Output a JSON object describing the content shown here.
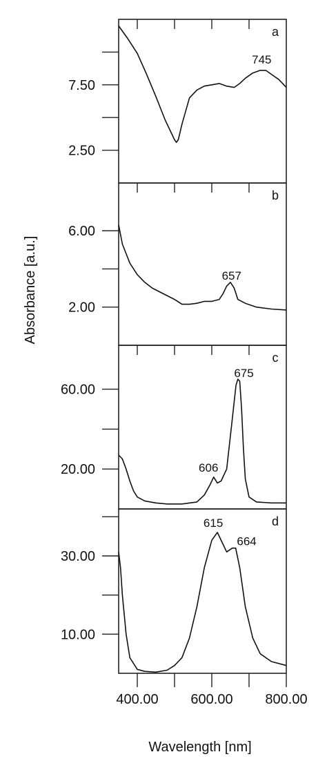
{
  "figure": {
    "ylabel": "Absorbance [a.u.]",
    "xlabel": "Wavelength [nm]"
  },
  "chart_data": [
    {
      "type": "line",
      "panel": "a",
      "xlim": [
        350,
        800
      ],
      "ylim": [
        0,
        12.5
      ],
      "yticks": [
        2.5,
        5.0,
        7.5,
        10.0
      ],
      "ytick_labels": [
        "2.50",
        "",
        "7.50",
        ""
      ],
      "xticks": [
        400,
        500,
        600,
        700
      ],
      "x": [
        350,
        375,
        400,
        425,
        450,
        475,
        500,
        505,
        510,
        520,
        540,
        560,
        580,
        600,
        620,
        640,
        660,
        675,
        690,
        710,
        730,
        745,
        760,
        780,
        800
      ],
      "y": [
        12.0,
        11.0,
        9.9,
        8.3,
        6.6,
        4.8,
        3.3,
        3.1,
        3.3,
        4.5,
        6.5,
        7.1,
        7.4,
        7.5,
        7.6,
        7.4,
        7.3,
        7.6,
        8.0,
        8.4,
        8.6,
        8.6,
        8.3,
        7.9,
        7.3
      ],
      "annotations": [
        {
          "text": "745",
          "x": 745
        }
      ]
    },
    {
      "type": "line",
      "panel": "b",
      "xlim": [
        350,
        800
      ],
      "ylim": [
        0,
        8.5
      ],
      "yticks": [
        2.0,
        4.0,
        6.0
      ],
      "ytick_labels": [
        "2.00",
        "",
        "6.00"
      ],
      "xticks": [
        400,
        500,
        600,
        700
      ],
      "x": [
        350,
        360,
        380,
        400,
        420,
        440,
        460,
        480,
        500,
        520,
        540,
        560,
        580,
        600,
        620,
        630,
        640,
        650,
        660,
        670,
        690,
        720,
        760,
        800
      ],
      "y": [
        6.3,
        5.3,
        4.3,
        3.7,
        3.3,
        3.0,
        2.8,
        2.6,
        2.4,
        2.15,
        2.15,
        2.2,
        2.3,
        2.3,
        2.4,
        2.7,
        3.1,
        3.3,
        3.0,
        2.4,
        2.2,
        2.0,
        1.9,
        1.85
      ],
      "annotations": [
        {
          "text": "657",
          "x": 657
        }
      ]
    },
    {
      "type": "line",
      "panel": "c",
      "xlim": [
        350,
        800
      ],
      "ylim": [
        0,
        82
      ],
      "yticks": [
        20.0,
        40.0,
        60.0
      ],
      "ytick_labels": [
        "20.00",
        "",
        "60.00"
      ],
      "xticks": [
        400,
        500,
        600,
        700
      ],
      "x": [
        350,
        360,
        370,
        380,
        390,
        400,
        420,
        450,
        480,
        520,
        560,
        580,
        595,
        605,
        615,
        625,
        640,
        655,
        665,
        670,
        675,
        680,
        685,
        690,
        700,
        720,
        760,
        800
      ],
      "y": [
        27,
        25,
        20,
        14,
        9,
        6,
        4,
        3,
        2.5,
        2.5,
        3.5,
        7,
        12,
        16,
        13,
        14,
        20,
        45,
        62,
        65,
        64,
        50,
        30,
        15,
        6,
        3.5,
        3,
        3
      ],
      "annotations": [
        {
          "text": "606",
          "x": 606
        },
        {
          "text": "675",
          "x": 675
        }
      ]
    },
    {
      "type": "line",
      "panel": "d",
      "xlim": [
        350,
        800
      ],
      "ylim": [
        0,
        42
      ],
      "yticks": [
        10.0,
        20.0,
        30.0,
        40.0
      ],
      "ytick_labels": [
        "10.00",
        "",
        "30.00",
        ""
      ],
      "xticks": [
        400.0,
        500.0,
        600.0,
        700.0,
        800.0
      ],
      "xtick_labels": [
        "400.00",
        "",
        "600.00",
        "",
        "800.00"
      ],
      "x": [
        350,
        355,
        360,
        370,
        380,
        400,
        420,
        450,
        480,
        500,
        520,
        540,
        560,
        580,
        600,
        615,
        630,
        640,
        655,
        664,
        675,
        690,
        710,
        730,
        760,
        800
      ],
      "y": [
        31,
        27,
        20,
        10,
        4,
        1,
        0.5,
        0.3,
        0.8,
        2,
        4,
        9,
        17,
        27,
        34,
        36,
        33,
        31,
        32,
        32,
        27,
        17,
        9,
        5,
        3,
        2
      ],
      "annotations": [
        {
          "text": "615",
          "x": 615
        },
        {
          "text": "664",
          "x": 664
        }
      ]
    }
  ]
}
